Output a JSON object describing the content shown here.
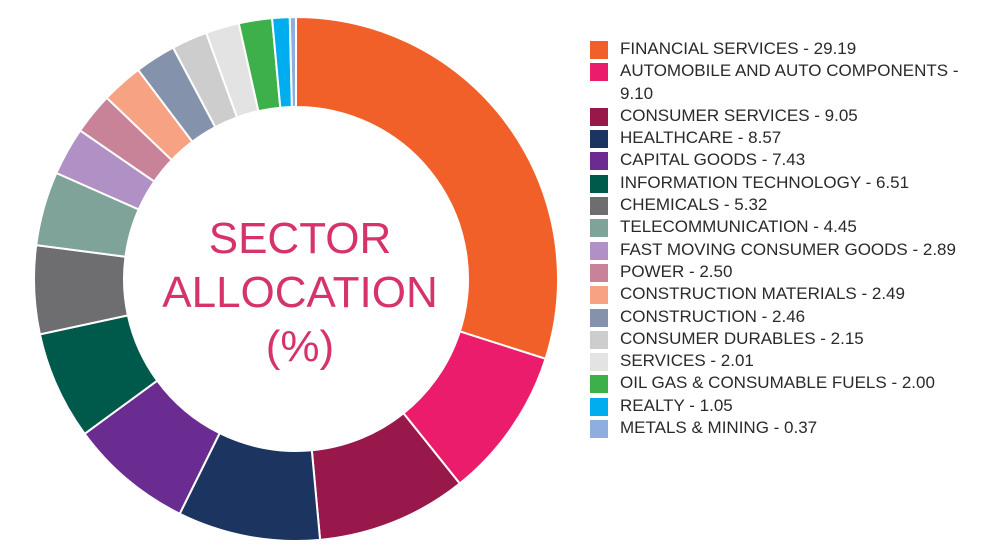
{
  "chart_data": {
    "type": "pie",
    "style": "donut",
    "title": [
      "SECTOR",
      "ALLOCATION",
      "(%)"
    ],
    "legend_position": "right",
    "title_color": "#d6336c",
    "slices": [
      {
        "label": "FINANCIAL SERVICES - 29.19",
        "value": 29.19,
        "color": "#f26029"
      },
      {
        "label": "AUTOMOBILE AND AUTO COMPONENTS - 9.10",
        "value": 9.1,
        "color": "#ec1c6c"
      },
      {
        "label": "CONSUMER SERVICES - 9.05",
        "value": 9.05,
        "color": "#98184c"
      },
      {
        "label": "HEALTHCARE - 8.57",
        "value": 8.57,
        "color": "#1b3560"
      },
      {
        "label": "CAPITAL GOODS - 7.43",
        "value": 7.43,
        "color": "#6b2c91"
      },
      {
        "label": "INFORMATION TECHNOLOGY - 6.51",
        "value": 6.51,
        "color": "#005a4c"
      },
      {
        "label": "CHEMICALS - 5.32",
        "value": 5.32,
        "color": "#6e6e70"
      },
      {
        "label": "TELECOMMUNICATION - 4.45",
        "value": 4.45,
        "color": "#7fa399"
      },
      {
        "label": "FAST MOVING CONSUMER GOODS - 2.89",
        "value": 2.89,
        "color": "#b190c6"
      },
      {
        "label": "POWER - 2.50",
        "value": 2.5,
        "color": "#c98398"
      },
      {
        "label": "CONSTRUCTION MATERIALS - 2.49",
        "value": 2.49,
        "color": "#f6a283"
      },
      {
        "label": "CONSTRUCTION - 2.46",
        "value": 2.46,
        "color": "#8592ab"
      },
      {
        "label": "CONSUMER DURABLES - 2.15",
        "value": 2.15,
        "color": "#cdcdcd"
      },
      {
        "label": "SERVICES - 2.01",
        "value": 2.01,
        "color": "#e3e3e3"
      },
      {
        "label": "OIL GAS & CONSUMABLE FUELS - 2.00",
        "value": 2.0,
        "color": "#3db049"
      },
      {
        "label": "REALTY - 1.05",
        "value": 1.05,
        "color": "#00adef"
      },
      {
        "label": "METALS & MINING - 0.37",
        "value": 0.37,
        "color": "#8eaee0"
      }
    ]
  }
}
